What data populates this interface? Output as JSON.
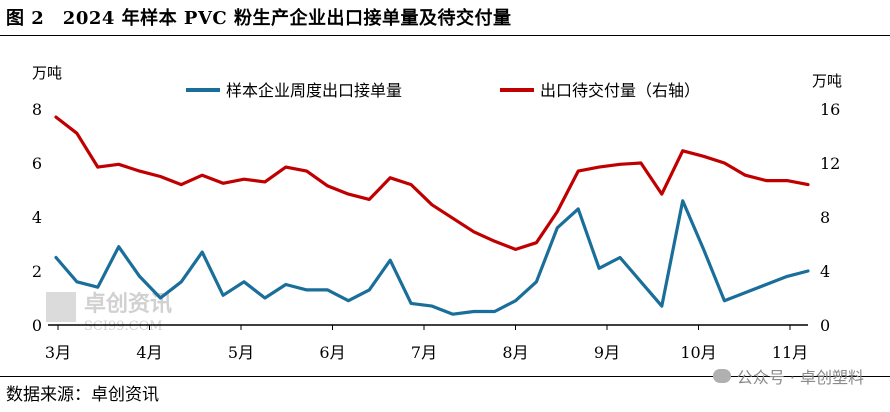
{
  "title": "图 2　2024 年样本 PVC 粉生产企业出口接单量及待交付量",
  "footer_source": "数据来源：卓创资讯",
  "footer_brand": "公众号 · 卓创塑料",
  "watermark_cn": "卓创资讯",
  "watermark_en": "SCI99.COM",
  "colors": {
    "series1": "#1a6e9a",
    "series2": "#c00000",
    "axis": "#000000"
  },
  "chart_data": {
    "type": "line",
    "left_unit": "万吨",
    "right_unit": "万吨",
    "left_ylim": [
      0,
      8
    ],
    "right_ylim": [
      0,
      16
    ],
    "left_ticks": [
      "0",
      "2",
      "4",
      "6",
      "8"
    ],
    "right_ticks": [
      "0",
      "4",
      "8",
      "12",
      "16"
    ],
    "month_labels": [
      "3月",
      "4月",
      "5月",
      "6月",
      "7月",
      "8月",
      "9月",
      "10月",
      "11月"
    ],
    "legend_position": "top",
    "series": [
      {
        "name": "样本企业周度出口接单量",
        "axis": "left",
        "values": [
          2.5,
          1.6,
          1.4,
          2.9,
          1.8,
          1.0,
          1.6,
          2.7,
          1.1,
          1.6,
          1.0,
          1.5,
          1.3,
          1.3,
          0.9,
          1.3,
          2.4,
          0.8,
          0.7,
          0.4,
          0.5,
          0.5,
          0.9,
          1.6,
          3.6,
          4.3,
          2.1,
          2.5,
          1.6,
          0.7,
          4.6,
          2.8,
          0.9,
          1.2,
          1.5,
          1.8,
          2.0
        ]
      },
      {
        "name": "出口待交付量（右轴）",
        "axis": "right",
        "values": [
          15.4,
          14.2,
          11.7,
          11.9,
          11.4,
          11.0,
          10.4,
          11.1,
          10.5,
          10.8,
          10.6,
          11.7,
          11.4,
          10.3,
          9.7,
          9.3,
          10.9,
          10.4,
          8.9,
          7.9,
          6.9,
          6.2,
          5.6,
          6.1,
          8.4,
          11.4,
          11.7,
          11.9,
          12.0,
          9.7,
          12.9,
          12.5,
          12.0,
          11.1,
          10.7,
          10.7,
          10.4
        ]
      }
    ]
  }
}
